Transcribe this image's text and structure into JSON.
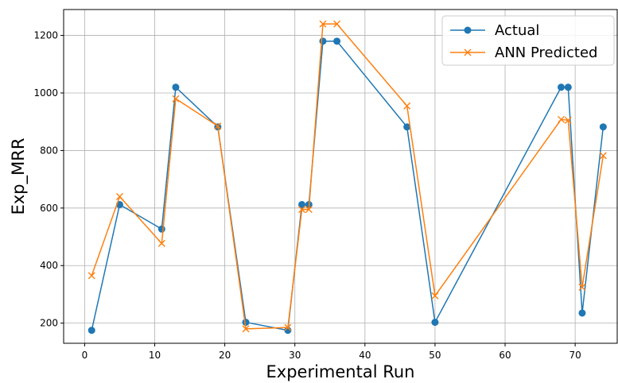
{
  "chart_data": {
    "type": "line",
    "title": "",
    "xlabel": "Experimental Run",
    "ylabel": "Exp_MRR",
    "xlim": [
      -3,
      76
    ],
    "ylim": [
      130,
      1290
    ],
    "xticks": [
      0,
      10,
      20,
      30,
      40,
      50,
      60,
      70
    ],
    "yticks": [
      200,
      400,
      600,
      800,
      1000,
      1200
    ],
    "grid": true,
    "legend_position": "top-right",
    "x": [
      1,
      5,
      11,
      13,
      19,
      23,
      29,
      31,
      32,
      34,
      36,
      46,
      50,
      68,
      69,
      71,
      74
    ],
    "series": [
      {
        "name": "Actual",
        "color": "#1f77b4",
        "marker": "circle",
        "values": [
          175,
          612,
          527,
          1020,
          882,
          203,
          175,
          612,
          612,
          1180,
          1180,
          882,
          203,
          1020,
          1020,
          235,
          882
        ]
      },
      {
        "name": "ANN Predicted",
        "color": "#ff7f0e",
        "marker": "x",
        "values": [
          365,
          640,
          477,
          980,
          885,
          180,
          185,
          595,
          595,
          1240,
          1240,
          955,
          295,
          908,
          905,
          325,
          782
        ]
      }
    ]
  }
}
